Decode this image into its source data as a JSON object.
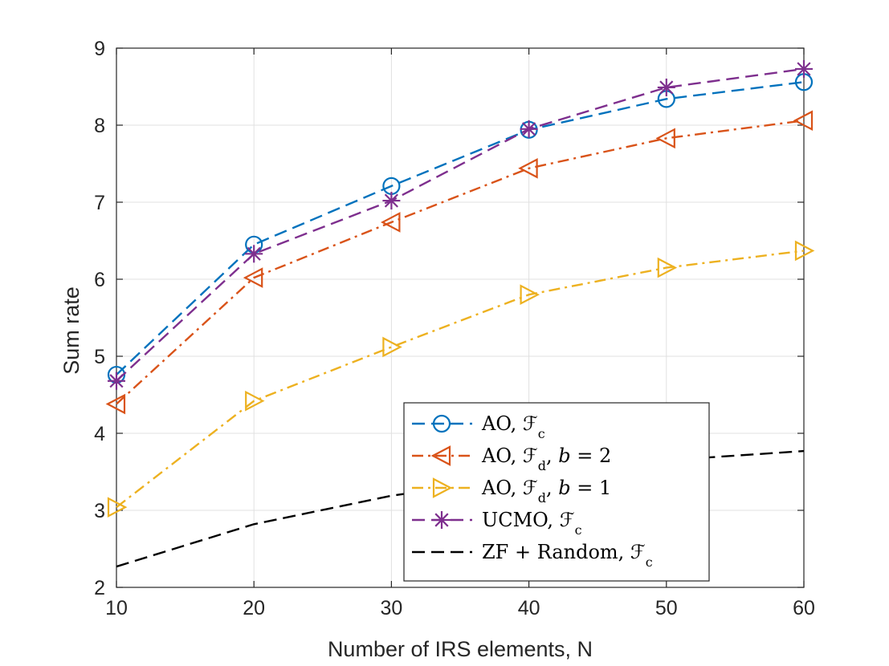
{
  "chart_data": {
    "type": "line",
    "title": "",
    "xlabel": "Number of IRS elements, N",
    "ylabel": "Sum rate",
    "x": [
      10,
      20,
      30,
      40,
      50,
      60
    ],
    "xlim": [
      10,
      60
    ],
    "ylim": [
      2,
      9
    ],
    "xticks": [
      "10",
      "20",
      "30",
      "40",
      "50",
      "60"
    ],
    "yticks": [
      "2",
      "3",
      "4",
      "5",
      "6",
      "7",
      "8",
      "9"
    ],
    "grid": true,
    "legend_position": "bottom-right",
    "series": [
      {
        "name": "AO, 𝓕c",
        "legend_html": "AO, ℱ<tspan baseline-shift='sub' font-size='16'>c</tspan>",
        "values": [
          4.76,
          6.45,
          7.21,
          7.94,
          8.34,
          8.56
        ],
        "color": "#0072BD",
        "dash": "dashed",
        "marker": "circle"
      },
      {
        "name": "AO, ℱd, b = 2",
        "legend_html": "AO, ℱ<tspan baseline-shift='sub' font-size='16'>d</tspan>, <tspan font-style='italic'>b</tspan> = 2",
        "values": [
          4.38,
          6.02,
          6.74,
          7.44,
          7.83,
          8.06
        ],
        "color": "#D95319",
        "dash": "dashdot",
        "marker": "triangle-left"
      },
      {
        "name": "AO, ℱd, b = 1",
        "legend_html": "AO, ℱ<tspan baseline-shift='sub' font-size='16'>d</tspan>, <tspan font-style='italic'>b</tspan> = 1",
        "values": [
          3.04,
          4.42,
          5.12,
          5.8,
          6.15,
          6.37
        ],
        "color": "#EDB120",
        "dash": "dashdot",
        "marker": "triangle-right"
      },
      {
        "name": "UCMO, ℱc",
        "legend_html": "UCMO, ℱ<tspan baseline-shift='sub' font-size='16'>c</tspan>",
        "values": [
          4.68,
          6.33,
          7.02,
          7.95,
          8.49,
          8.73
        ],
        "color": "#7E2F8E",
        "dash": "dashed",
        "marker": "asterisk"
      },
      {
        "name": "ZF + Random, ℱc",
        "legend_html": "ZF + Random, ℱ<tspan baseline-shift='sub' font-size='16'>c</tspan>",
        "values": [
          2.27,
          2.82,
          3.19,
          3.44,
          3.65,
          3.77
        ],
        "color": "#000000",
        "dash": "dashed",
        "marker": "none"
      }
    ]
  }
}
